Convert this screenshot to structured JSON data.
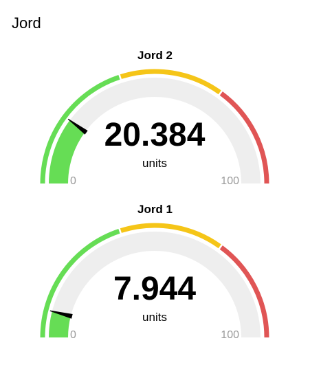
{
  "group": {
    "title": "Jord"
  },
  "colors": {
    "track": "#eeeeee",
    "fill": "#66dd55",
    "green": "#66dd55",
    "yellow": "#f5c518",
    "red": "#e05555",
    "needle": "#000000",
    "limit_text": "#999999"
  },
  "gauges": [
    {
      "title": "Jord 2",
      "value": 20.384,
      "value_text": "20.384",
      "units": "units",
      "min": 0,
      "max": 100,
      "min_label": "0",
      "max_label": "100",
      "sectors": [
        {
          "from": 0,
          "to": 40,
          "color": "#66dd55"
        },
        {
          "from": 40,
          "to": 70,
          "color": "#f5c518"
        },
        {
          "from": 70,
          "to": 100,
          "color": "#e05555"
        }
      ]
    },
    {
      "title": "Jord 1",
      "value": 7.944,
      "value_text": "7.944",
      "units": "units",
      "min": 0,
      "max": 100,
      "min_label": "0",
      "max_label": "100",
      "sectors": [
        {
          "from": 0,
          "to": 40,
          "color": "#66dd55"
        },
        {
          "from": 40,
          "to": 70,
          "color": "#f5c518"
        },
        {
          "from": 70,
          "to": 100,
          "color": "#e05555"
        }
      ]
    }
  ]
}
